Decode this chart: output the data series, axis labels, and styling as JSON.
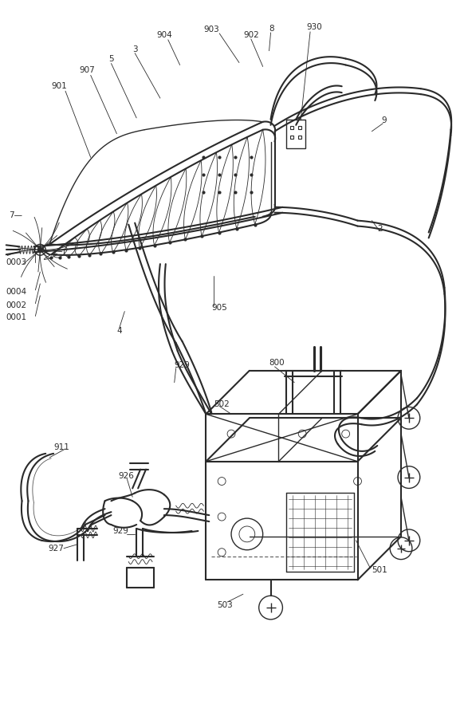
{
  "background_color": "#ffffff",
  "line_color": "#2a2a2a",
  "fig_width": 5.87,
  "fig_height": 8.98,
  "dpi": 100
}
